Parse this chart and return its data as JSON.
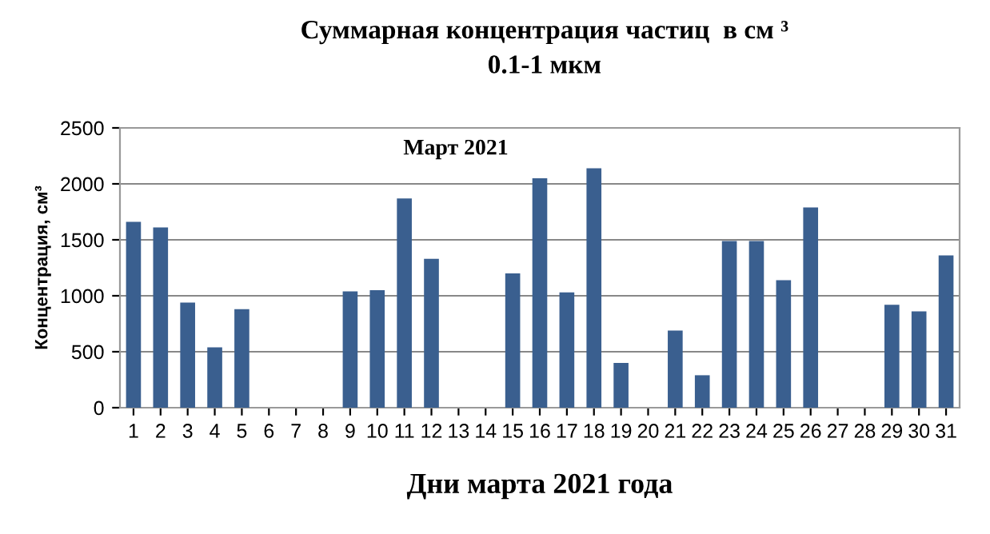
{
  "chart_data": {
    "type": "bar",
    "title": "Суммарная концентрация частиц  в см ³",
    "subtitle": "0.1-1 мкм",
    "xlabel": "Дни марта 2021 года",
    "ylabel": "Концентрация, см³",
    "annotations": [
      "Март 2021"
    ],
    "categories": [
      "1",
      "2",
      "3",
      "4",
      "5",
      "6",
      "7",
      "8",
      "9",
      "10",
      "11",
      "12",
      "13",
      "14",
      "15",
      "16",
      "17",
      "18",
      "19",
      "20",
      "21",
      "22",
      "23",
      "24",
      "25",
      "26",
      "27",
      "28",
      "29",
      "30",
      "31"
    ],
    "values": [
      1660,
      1610,
      940,
      540,
      880,
      null,
      null,
      null,
      1040,
      1050,
      1870,
      1330,
      null,
      null,
      1200,
      2050,
      1030,
      2140,
      400,
      null,
      690,
      290,
      1490,
      1490,
      1140,
      1790,
      null,
      null,
      920,
      860,
      1360
    ],
    "color": "#3a5f8f",
    "ylim": [
      0,
      2500
    ],
    "yticks": [
      0,
      500,
      1000,
      1500,
      2000,
      2500
    ],
    "grid": "y",
    "legend": false
  }
}
